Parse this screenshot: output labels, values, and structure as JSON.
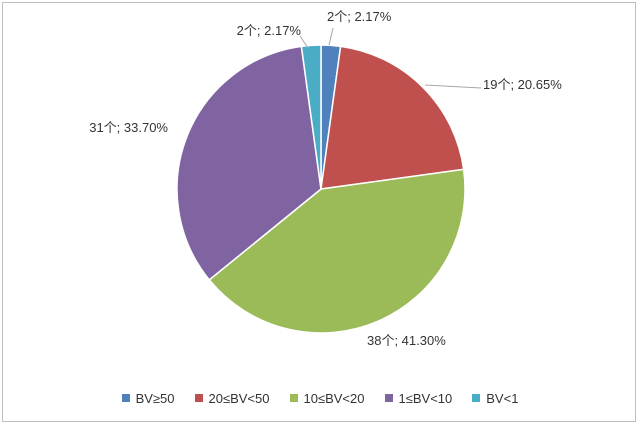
{
  "chart_data": {
    "type": "pie",
    "title": "",
    "categories": [
      "BV≥50",
      "20≤BV<50",
      "10≤BV<20",
      "1≤BV<10",
      "BV<1"
    ],
    "values": [
      2,
      19,
      38,
      31,
      2
    ],
    "percentages": [
      2.17,
      20.65,
      41.3,
      33.7,
      2.17
    ],
    "data_labels": [
      "2个; 2.17%",
      "19个; 20.65%",
      "38个; 41.30%",
      "31个; 33.70%",
      "2个; 2.17%"
    ],
    "colors": [
      "#4f81bd",
      "#c0504d",
      "#9bbb59",
      "#8064a2",
      "#4bacc6"
    ],
    "legend_position": "bottom",
    "start_angle": "12-o'clock",
    "direction": "clockwise"
  }
}
